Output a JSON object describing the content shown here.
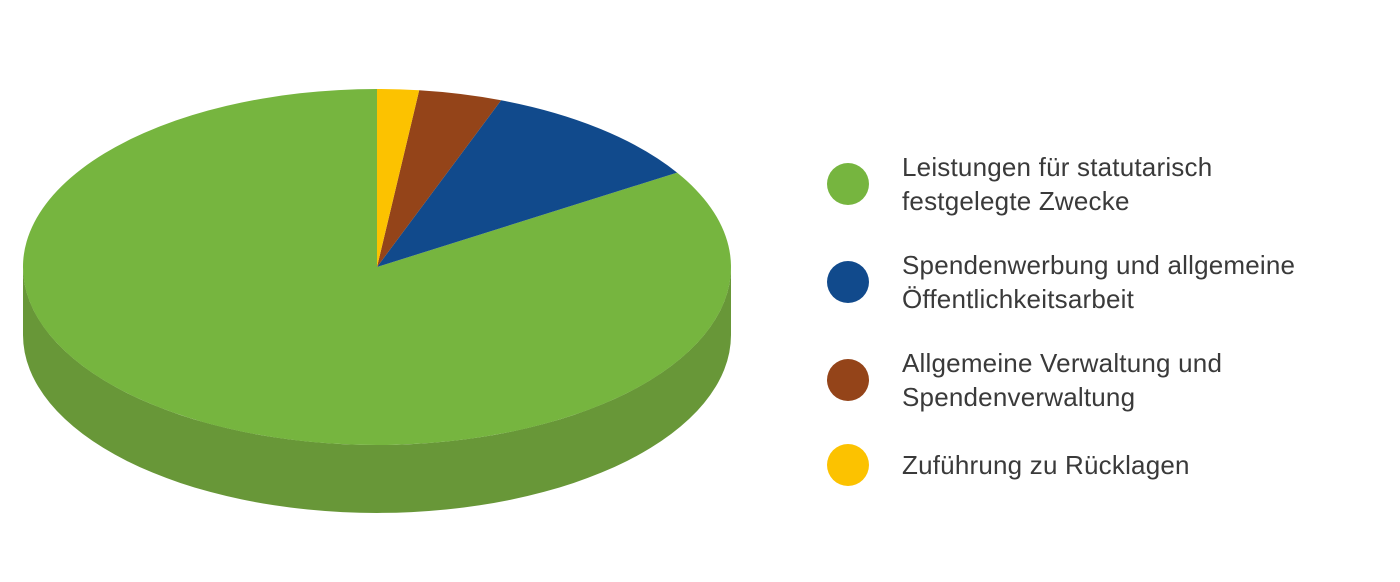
{
  "chart_data": {
    "type": "pie",
    "style": "3d",
    "title": "",
    "legend_position": "right",
    "direction": "counterclockwise",
    "start_angle_deg": 90,
    "slices": [
      {
        "label": "Leistungen für statutarisch festgelegte Zwecke",
        "label_lines": [
          "Leistungen für statutarisch",
          "festgelegte Zwecke"
        ],
        "value_pct": 83.9,
        "color": "#76b53f"
      },
      {
        "label": "Spendenwerbung und allgemeine Öffentlichkeitsarbeit",
        "label_lines": [
          "Spendenwerbung und allgemeine",
          "Öffentlichkeitsarbeit"
        ],
        "value_pct": 10.4,
        "color": "#114a8c"
      },
      {
        "label": "Allgemeine Verwaltung und Spendenverwaltung",
        "label_lines": [
          "Allgemeine Verwaltung und",
          "Spendenverwaltung"
        ],
        "value_pct": 3.8,
        "color": "#944419"
      },
      {
        "label": "Zuführung zu Rücklagen",
        "label_lines": [
          "Zuführung zu Rücklagen"
        ],
        "value_pct": 1.9,
        "color": "#fcc200"
      }
    ],
    "side_color": "#689738",
    "text_color": "#3a3a3a",
    "background_color": "#ffffff"
  }
}
